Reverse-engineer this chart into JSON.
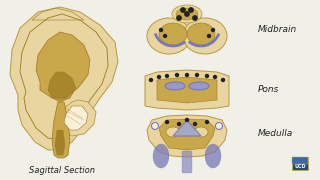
{
  "bg_color": "#f0efe8",
  "tan": "#e8d5a0",
  "tan_dark": "#b89840",
  "tan_inner": "#c8a84a",
  "tan_deep": "#9a7820",
  "purple": "#7878b8",
  "blue_lemniscus": "#9898cc",
  "blue_fill": "#a0a8d0",
  "dark": "#222222",
  "white_ish": "#f8f0d8",
  "label_fs": 6.5,
  "text_color": "#222222",
  "label_midbrain": "Midbrain",
  "label_pons": "Pons",
  "label_medulla": "Medulla",
  "label_sagittal": "Sagittal Section"
}
